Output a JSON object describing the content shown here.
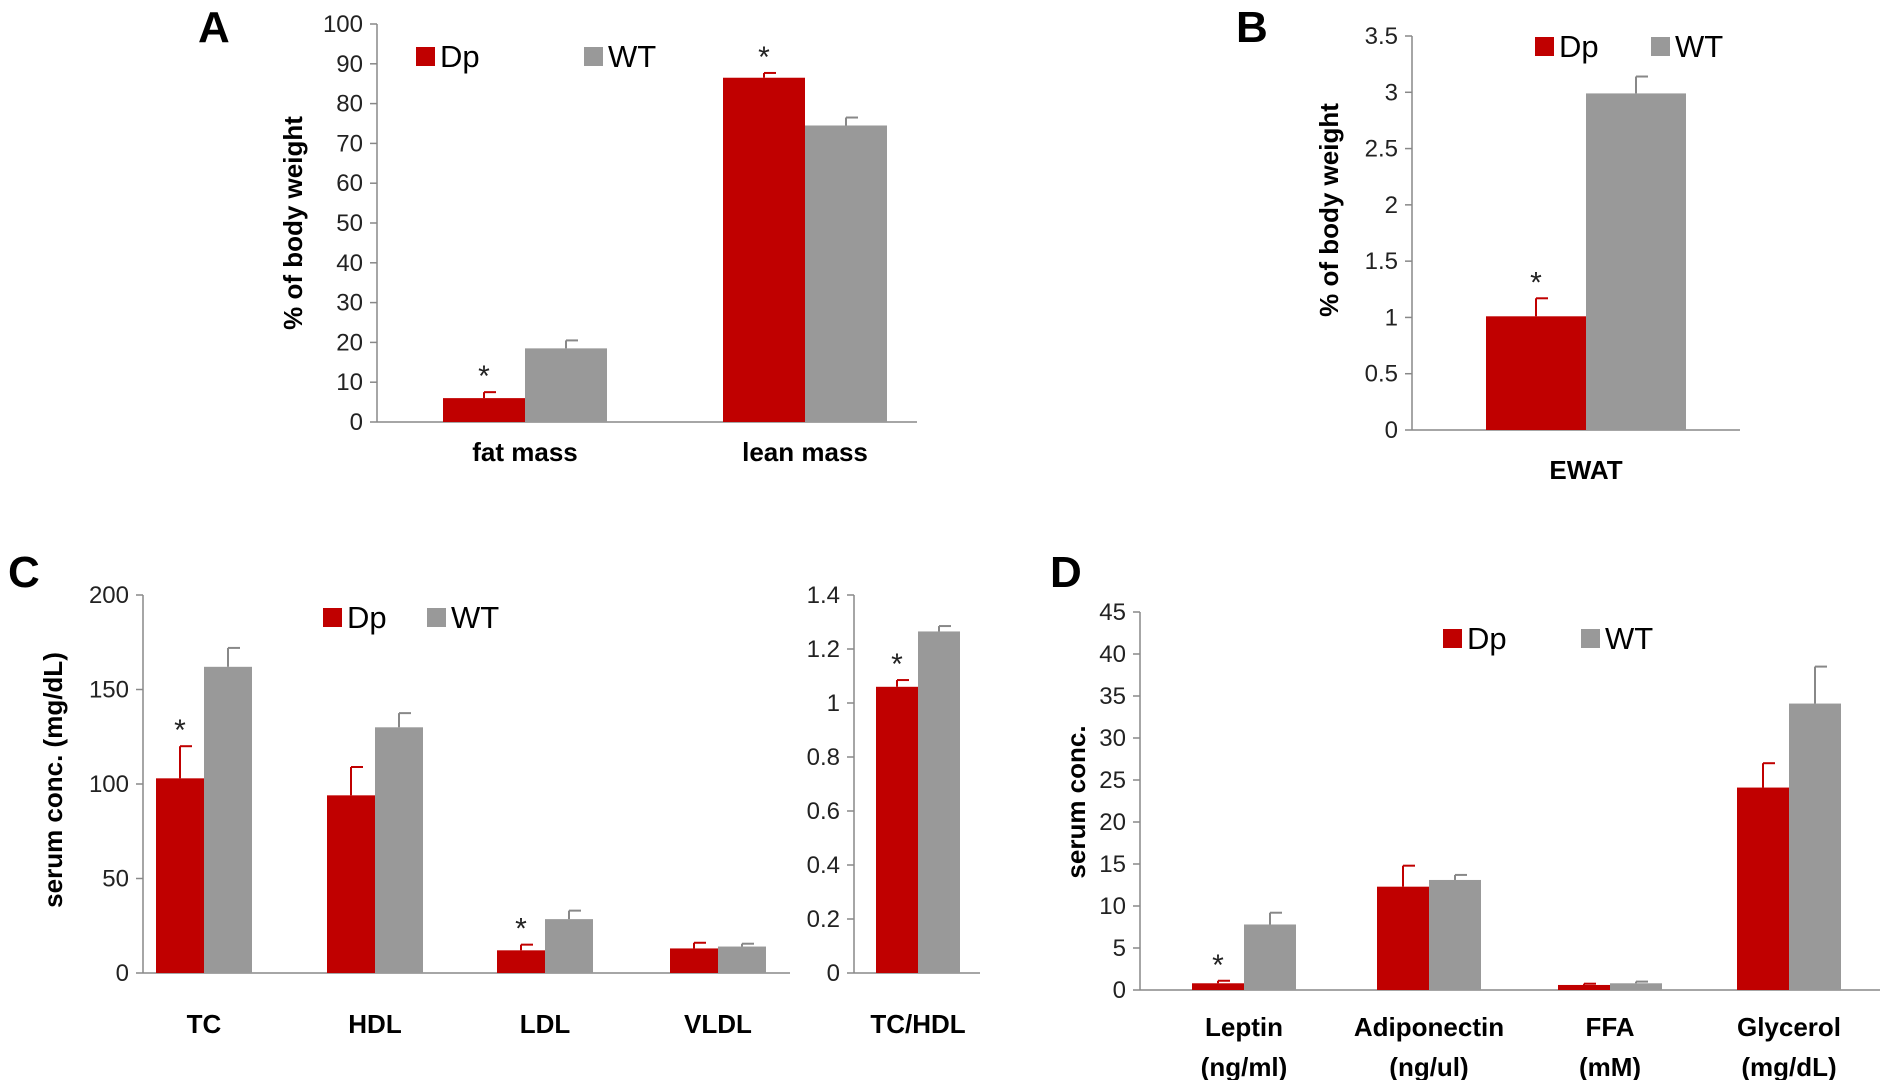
{
  "colors": {
    "Dp": "#c00000",
    "WT": "#999999",
    "axis": "#888888",
    "error": "#c00000",
    "error_wt": "#888888"
  },
  "chart_data": [
    {
      "panel": "A",
      "type": "bar",
      "ylabel": "% of body weight",
      "ylim": [
        0,
        100
      ],
      "yticks": [
        "0",
        "10",
        "20",
        "30",
        "40",
        "50",
        "60",
        "70",
        "80",
        "90",
        "100"
      ],
      "categories": [
        "fat mass",
        "lean mass"
      ],
      "series": [
        {
          "name": "Dp",
          "values": [
            6,
            86.5
          ],
          "errors": [
            1.5,
            1.2
          ],
          "significant": [
            true,
            true
          ]
        },
        {
          "name": "WT",
          "values": [
            18.5,
            74.5
          ],
          "errors": [
            2,
            2
          ],
          "significant": [
            false,
            false
          ]
        }
      ],
      "legend": "top"
    },
    {
      "panel": "B",
      "type": "bar",
      "ylabel": "% of body weight",
      "ylim": [
        0,
        3.5
      ],
      "yticks": [
        "0",
        "0.5",
        "1",
        "1.5",
        "2",
        "2.5",
        "3",
        "3.5"
      ],
      "categories": [
        "EWAT"
      ],
      "series": [
        {
          "name": "Dp",
          "values": [
            1.01
          ],
          "errors": [
            0.16
          ],
          "significant": [
            true
          ]
        },
        {
          "name": "WT",
          "values": [
            2.99
          ],
          "errors": [
            0.15
          ],
          "significant": [
            false
          ]
        }
      ],
      "legend": "top"
    },
    {
      "panel": "C",
      "type": "bar",
      "ylabel": "serum conc. (mg/dL)",
      "ylim": [
        0,
        200
      ],
      "yticks": [
        "0",
        "50",
        "100",
        "150",
        "200"
      ],
      "categories": [
        "TC",
        "HDL",
        "LDL",
        "VLDL"
      ],
      "series": [
        {
          "name": "Dp",
          "values": [
            103,
            94,
            12,
            13
          ],
          "errors": [
            17,
            15,
            3,
            3
          ],
          "significant": [
            true,
            false,
            true,
            false
          ]
        },
        {
          "name": "WT",
          "values": [
            162,
            130,
            28.5,
            14
          ],
          "errors": [
            10,
            7.5,
            4.5,
            1.5
          ],
          "significant": [
            false,
            false,
            false,
            false
          ]
        }
      ],
      "legend": "top"
    },
    {
      "panel": "C",
      "type": "bar",
      "ylabel": "",
      "ylim": [
        0,
        1.4
      ],
      "yticks": [
        "0",
        "0.2",
        "0.4",
        "0.6",
        "0.8",
        "1",
        "1.2",
        "1.4"
      ],
      "categories": [
        "TC/HDL"
      ],
      "series": [
        {
          "name": "Dp",
          "values": [
            1.06
          ],
          "errors": [
            0.025
          ],
          "significant": [
            true
          ]
        },
        {
          "name": "WT",
          "values": [
            1.265
          ],
          "errors": [
            0.02
          ],
          "significant": [
            false
          ]
        }
      ]
    },
    {
      "panel": "D",
      "type": "bar",
      "ylabel": "serum conc.",
      "ylim": [
        0,
        45
      ],
      "yticks": [
        "0",
        "5",
        "10",
        "15",
        "20",
        "25",
        "30",
        "35",
        "40",
        "45"
      ],
      "categories": [
        "Leptin (ng/ml)",
        "Adiponectin (ng/ul)",
        "FFA (mM)",
        "Glycerol (mg/dL)"
      ],
      "category_lines": [
        [
          "Leptin",
          "(ng/ml)"
        ],
        [
          "Adiponectin",
          "(ng/ul)"
        ],
        [
          "FFA",
          "(mM)"
        ],
        [
          "Glycerol",
          "(mg/dL)"
        ]
      ],
      "series": [
        {
          "name": "Dp",
          "values": [
            0.8,
            12.3,
            0.6,
            24.1
          ],
          "errors": [
            0.3,
            2.5,
            0.15,
            2.9
          ],
          "significant": [
            true,
            false,
            false,
            false
          ]
        },
        {
          "name": "WT",
          "values": [
            7.8,
            13.1,
            0.8,
            34.1
          ],
          "errors": [
            1.4,
            0.6,
            0.2,
            4.4
          ],
          "significant": [
            false,
            false,
            false,
            false
          ]
        }
      ],
      "legend": "top"
    }
  ]
}
